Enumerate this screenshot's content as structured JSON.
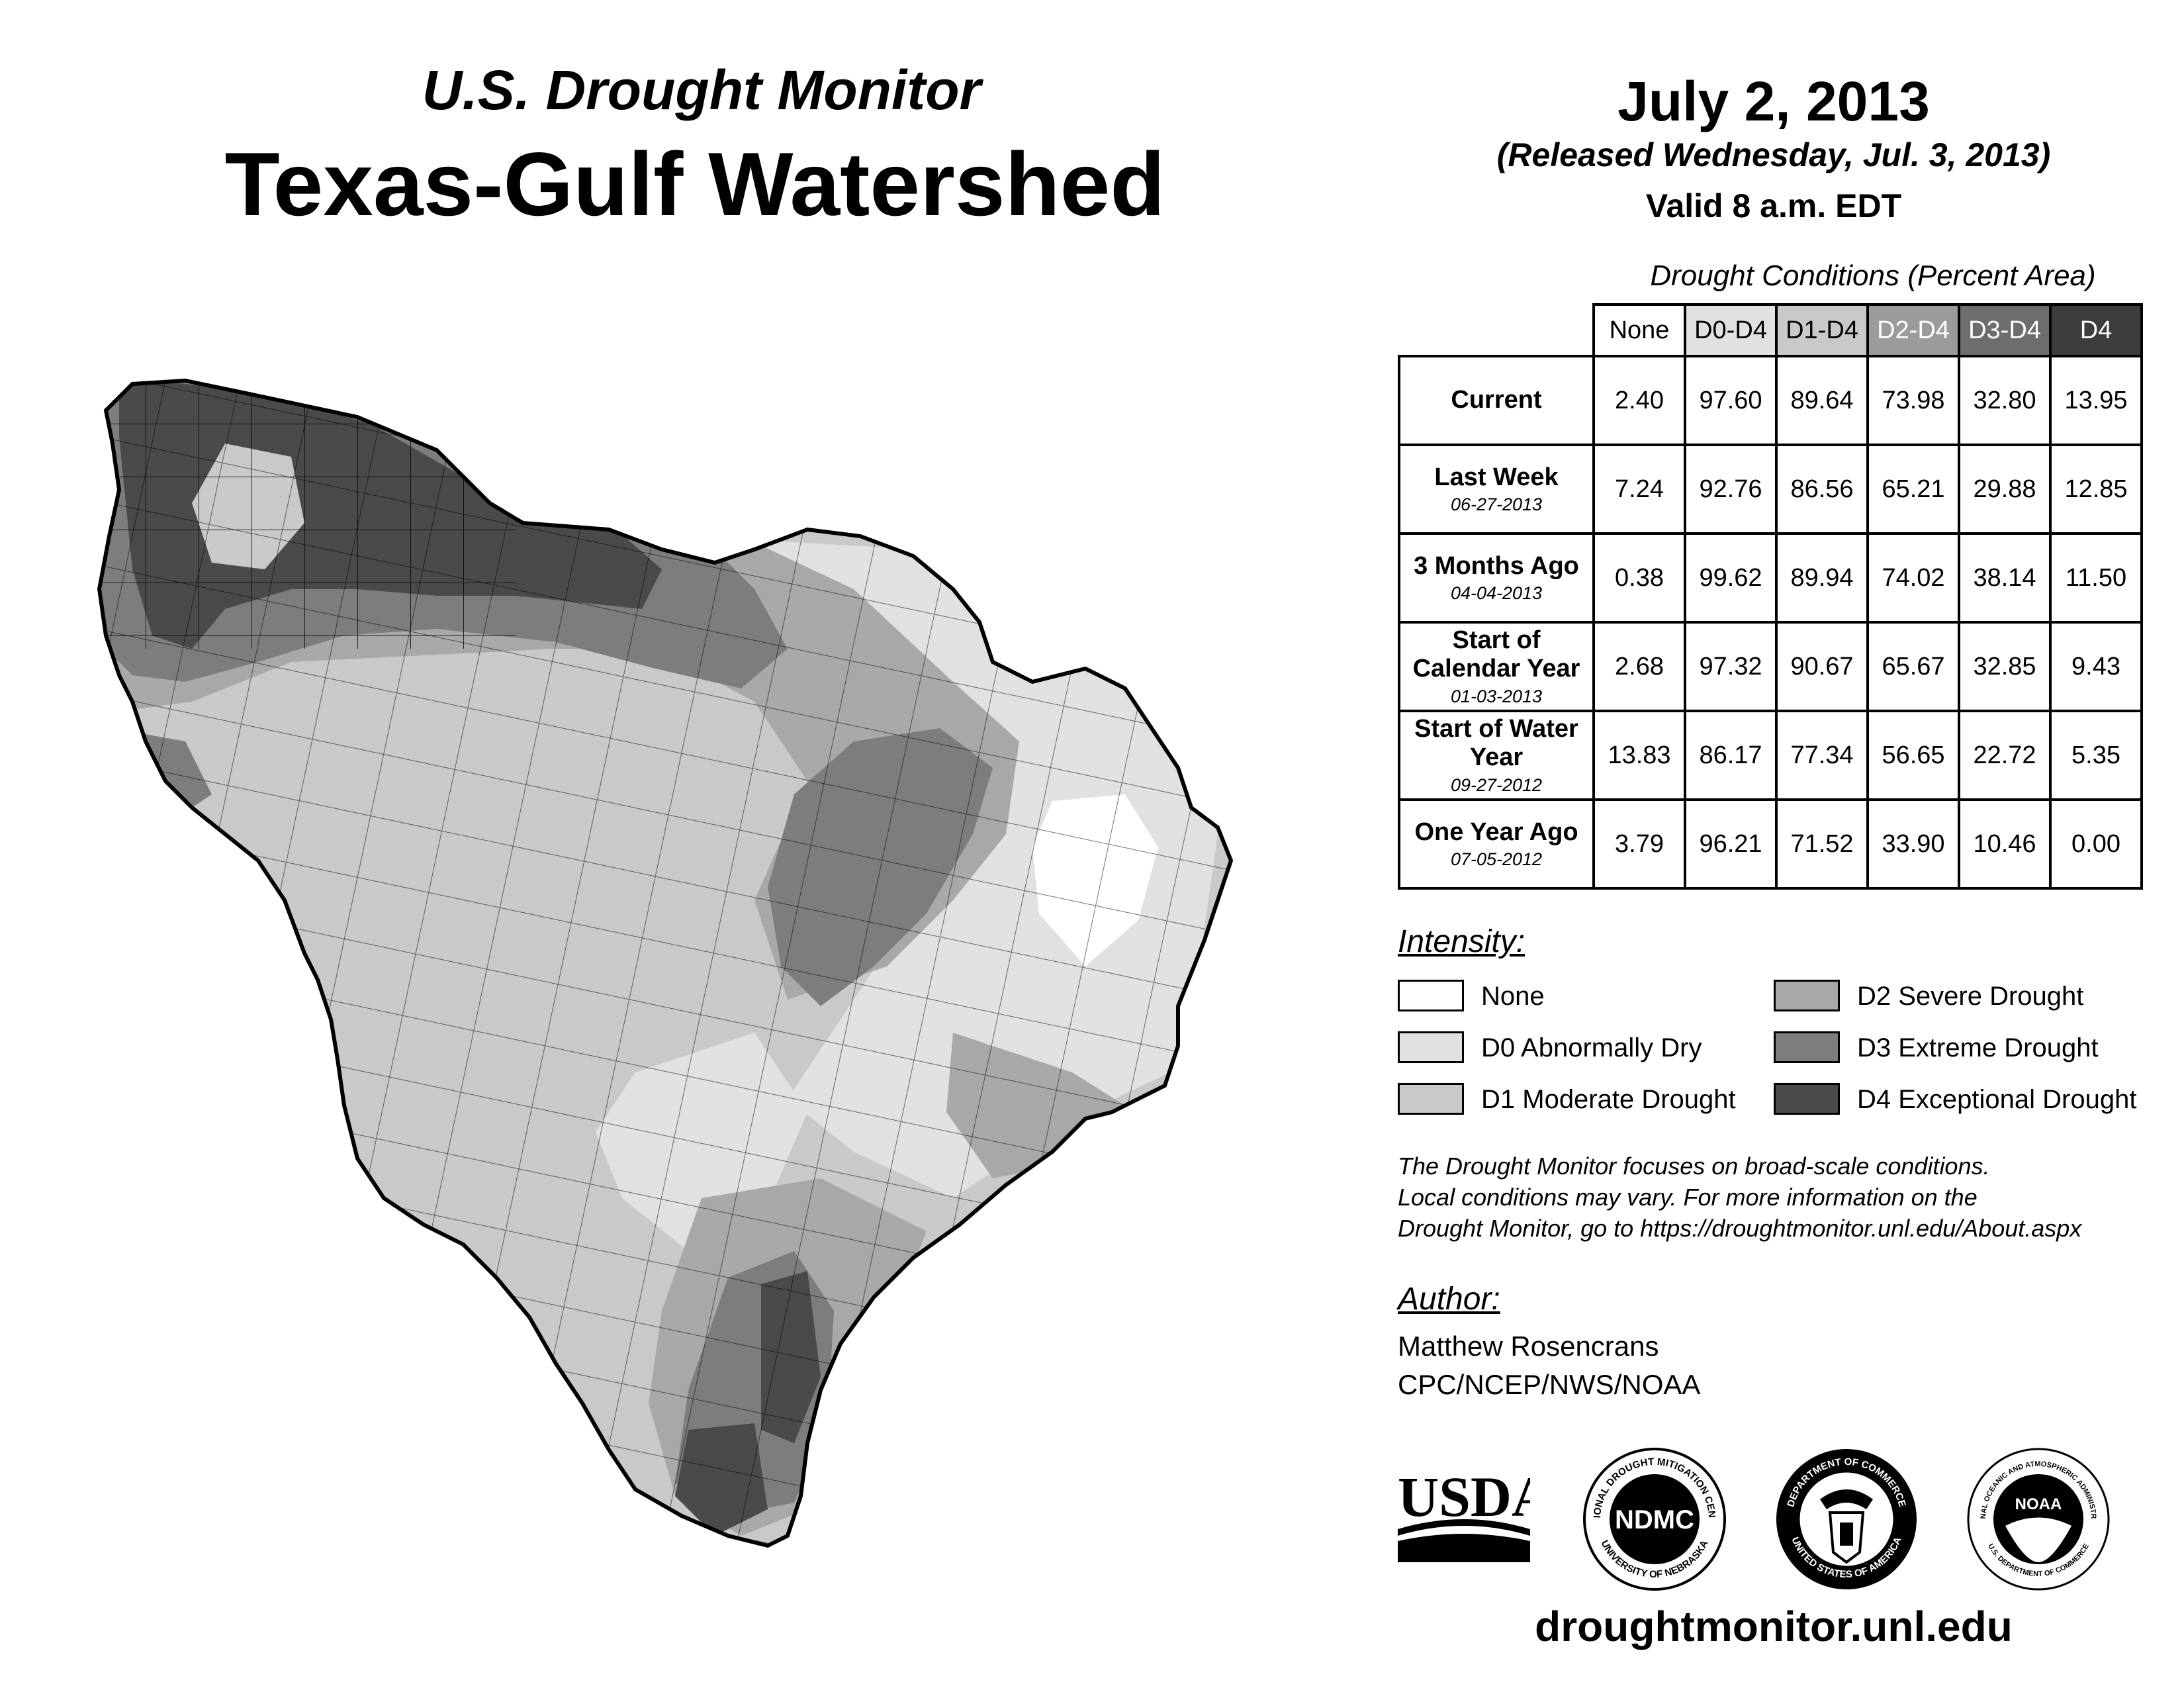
{
  "header": {
    "top_title": "U.S. Drought Monitor",
    "main_title": "Texas-Gulf Watershed",
    "date": "July 2, 2013",
    "released": "(Released Wednesday, Jul. 3, 2013)",
    "valid": "Valid 8 a.m. EDT"
  },
  "table": {
    "caption": "Drought Conditions (Percent Area)",
    "columns": [
      "None",
      "D0-D4",
      "D1-D4",
      "D2-D4",
      "D3-D4",
      "D4"
    ],
    "rows": [
      {
        "label": "Current",
        "date": "",
        "values": [
          "2.40",
          "97.60",
          "89.64",
          "73.98",
          "32.80",
          "13.95"
        ]
      },
      {
        "label": "Last Week",
        "date": "06-27-2013",
        "values": [
          "7.24",
          "92.76",
          "86.56",
          "65.21",
          "29.88",
          "12.85"
        ]
      },
      {
        "label": "3 Months Ago",
        "date": "04-04-2013",
        "values": [
          "0.38",
          "99.62",
          "89.94",
          "74.02",
          "38.14",
          "11.50"
        ]
      },
      {
        "label": "Start of Calendar Year",
        "date": "01-03-2013",
        "values": [
          "2.68",
          "97.32",
          "90.67",
          "65.67",
          "32.85",
          "9.43"
        ]
      },
      {
        "label": "Start of Water Year",
        "date": "09-27-2012",
        "values": [
          "13.83",
          "86.17",
          "77.34",
          "56.65",
          "22.72",
          "5.35"
        ]
      },
      {
        "label": "One Year Ago",
        "date": "07-05-2012",
        "values": [
          "3.79",
          "96.21",
          "71.52",
          "33.90",
          "10.46",
          "0.00"
        ]
      }
    ]
  },
  "legend": {
    "title": "Intensity:",
    "items": [
      {
        "label": "None",
        "color": "#ffffff"
      },
      {
        "label": "D0 Abnormally Dry",
        "color": "#e1e1e1"
      },
      {
        "label": "D1 Moderate Drought",
        "color": "#c9c9c9"
      },
      {
        "label": "D2 Severe Drought",
        "color": "#a8a8a8"
      },
      {
        "label": "D3 Extreme Drought",
        "color": "#7d7d7d"
      },
      {
        "label": "D4 Exceptional Drought",
        "color": "#4a4a4a"
      }
    ]
  },
  "note": {
    "line1": "The Drought Monitor focuses on broad-scale conditions.",
    "line2": "Local conditions may vary. For more information on the",
    "line3": "Drought Monitor, go to https://droughtmonitor.unl.edu/About.aspx"
  },
  "author": {
    "heading": "Author:",
    "name": "Matthew Rosencrans",
    "org": "CPC/NCEP/NWS/NOAA"
  },
  "logos": {
    "usda": "USDA",
    "ndmc": "NDMC",
    "ndmc_ring_top": "NATIONAL DROUGHT MITIGATION CENTER",
    "ndmc_ring_bottom": "UNIVERSITY OF NEBRASKA",
    "doc_ring_top": "DEPARTMENT OF COMMERCE",
    "doc_ring_bottom": "UNITED STATES OF AMERICA",
    "noaa": "NOAA",
    "noaa_ring_top": "NATIONAL OCEANIC AND ATMOSPHERIC ADMINISTRATION",
    "noaa_ring_bottom": "U.S. DEPARTMENT OF COMMERCE"
  },
  "footer": {
    "url": "droughtmonitor.unl.edu"
  }
}
